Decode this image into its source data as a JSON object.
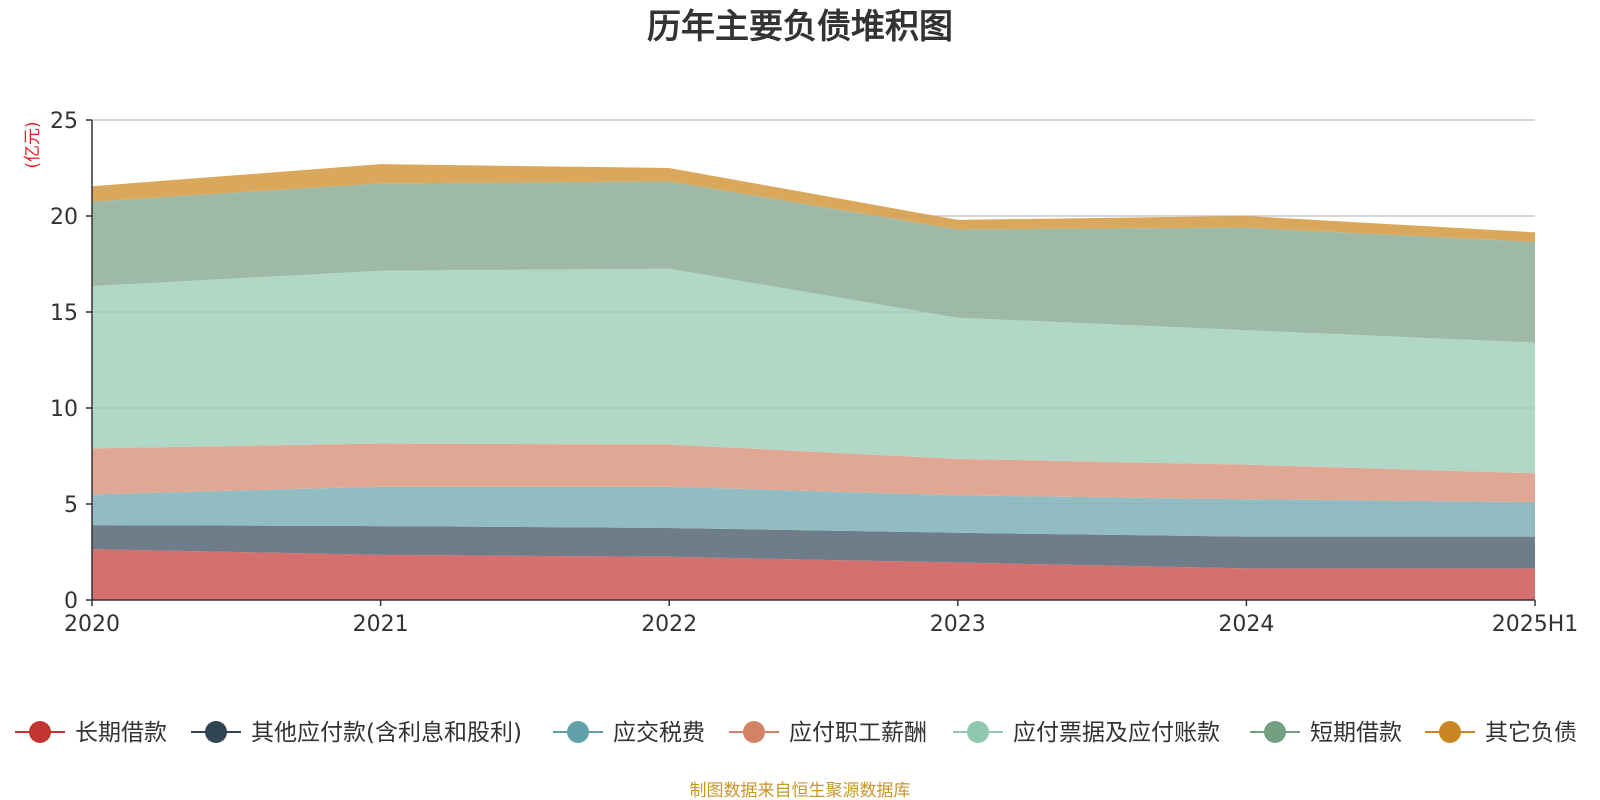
{
  "chart_data": {
    "type": "area",
    "stacked": true,
    "title": "历年主要负债堆积图",
    "unit_label": "(亿元)",
    "source_text": "制图数据来自恒生聚源数据库",
    "categories": [
      "2020",
      "2021",
      "2022",
      "2023",
      "2024",
      "2025H1"
    ],
    "ylim": [
      0,
      25
    ],
    "yticks": [
      0,
      5,
      10,
      15,
      20,
      25
    ],
    "grid": true,
    "legend_position": "bottom",
    "series": [
      {
        "name": "长期借款",
        "color": "#c23531",
        "fill": "#d6706f",
        "values": [
          2.65,
          2.35,
          2.25,
          1.95,
          1.65,
          1.65
        ]
      },
      {
        "name": "其他应付款(含利息和股利)",
        "color": "#2f4554",
        "fill": "#6e7d89",
        "values": [
          1.25,
          1.5,
          1.5,
          1.55,
          1.65,
          1.65
        ]
      },
      {
        "name": "应交税费",
        "color": "#61a0a8",
        "fill": "#90bcc2",
        "values": [
          1.6,
          2.05,
          2.15,
          1.95,
          1.95,
          1.8
        ]
      },
      {
        "name": "应付职工薪酬",
        "color": "#d48265",
        "fill": "#e0a794",
        "values": [
          2.4,
          2.25,
          2.2,
          1.9,
          1.8,
          1.5
        ]
      },
      {
        "name": "应付票据及应付账款",
        "color": "#91c7ae",
        "fill": "#b1d8c7",
        "values": [
          8.45,
          9.0,
          9.15,
          7.35,
          7.0,
          6.8
        ]
      },
      {
        "name": "短期借款",
        "color": "#749f83",
        "fill": "#9eba a6",
        "values": [
          4.4,
          4.55,
          4.55,
          4.6,
          5.35,
          5.25
        ]
      },
      {
        "name": "其它负债",
        "color": "#ca8622",
        "fill": "#d9a85c",
        "values": [
          0.8,
          1.0,
          0.7,
          0.5,
          0.6,
          0.5
        ]
      }
    ]
  }
}
